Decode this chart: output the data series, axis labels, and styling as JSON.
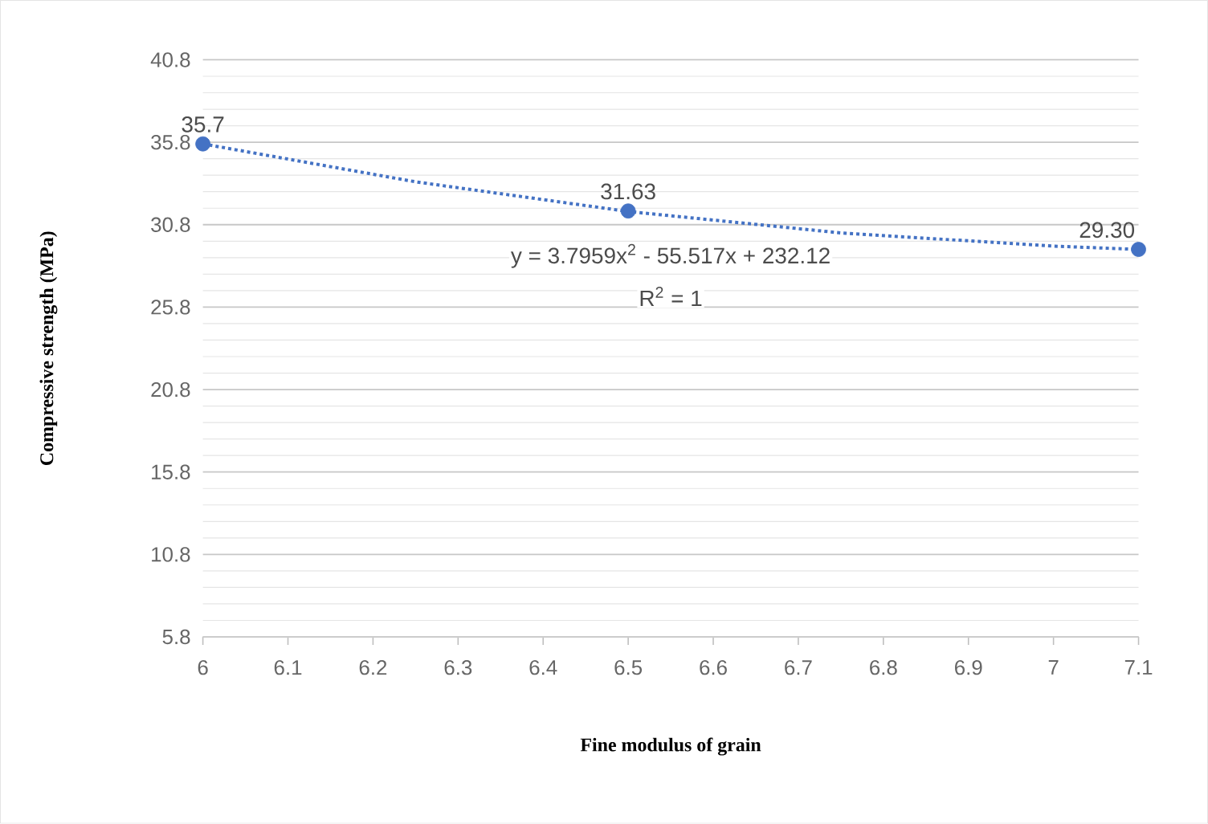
{
  "chart_data": {
    "type": "scatter",
    "xlabel": "Fine modulus of grain",
    "ylabel": "Compressive strength (MPa)",
    "annotations": [
      "y = 3.7959x$^{2}$ - 55.517x + 232.12",
      "R$^{2}$ = 1"
    ],
    "x": [
      6,
      6.5,
      7.1
    ],
    "series": [
      {
        "color": "#4472c4",
        "values": [
          35.7,
          31.63,
          29.3
        ],
        "value_labels": [
          "35.7",
          "31.63",
          "29.30"
        ],
        "marker": "circle"
      },
      {
        "type": "line",
        "color": "#4472c4",
        "line_style": "dotted",
        "marker": "none",
        "x": [
          6,
          6.25,
          6.5,
          6.75,
          7,
          7.1
        ],
        "values": [
          35.7,
          33.4,
          31.6,
          30.3,
          29.5,
          29.3
        ]
      }
    ],
    "xlim": [
      6,
      7.1
    ],
    "xticks": [
      6,
      6.1,
      6.2,
      6.3,
      6.4,
      6.5,
      6.6,
      6.7,
      6.8,
      6.9,
      7,
      7.1
    ],
    "ylim": [
      5.8,
      40.8
    ],
    "yticks": [
      5.8,
      10.8,
      15.8,
      20.8,
      25.8,
      30.8,
      35.8,
      40.8
    ],
    "grid": "y"
  }
}
